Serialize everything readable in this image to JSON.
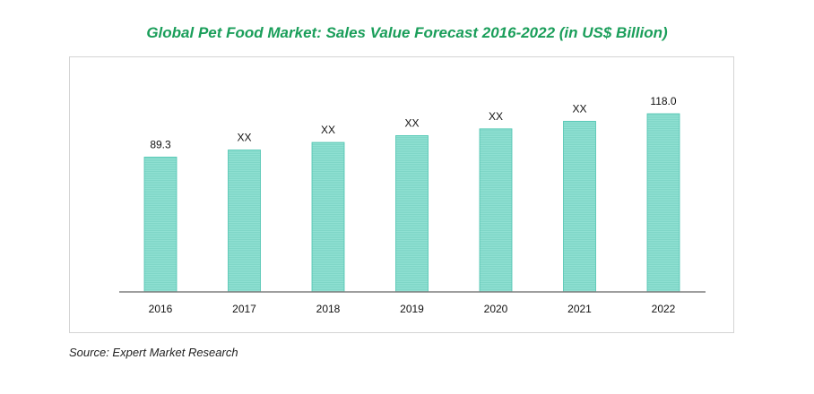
{
  "header": {
    "title": "Global Pet Food Market: Sales Value Forecast 2016-2022 (in US$ Billion)"
  },
  "footer": {
    "source": "Source: Expert Market Research"
  },
  "colors": {
    "title": "#1a9e5a",
    "bar_fill": "#8fe0d2",
    "bar_stripe": "#7fd6c7",
    "bar_edge": "#4cc4b0",
    "axis": "#7f7f7f"
  },
  "chart_data": {
    "type": "bar",
    "title": "Global Pet Food Market: Sales Value Forecast 2016-2022 (in US$ Billion)",
    "categories": [
      "2016",
      "2017",
      "2018",
      "2019",
      "2020",
      "2021",
      "2022"
    ],
    "values": [
      89.3,
      94,
      99,
      103.5,
      108,
      113,
      118.0
    ],
    "data_labels": [
      "89.3",
      "XX",
      "XX",
      "XX",
      "XX",
      "XX",
      "118.0"
    ],
    "xlabel": "",
    "ylabel": "",
    "ylim": [
      0,
      118.0
    ],
    "grid": false,
    "legend": "none"
  }
}
